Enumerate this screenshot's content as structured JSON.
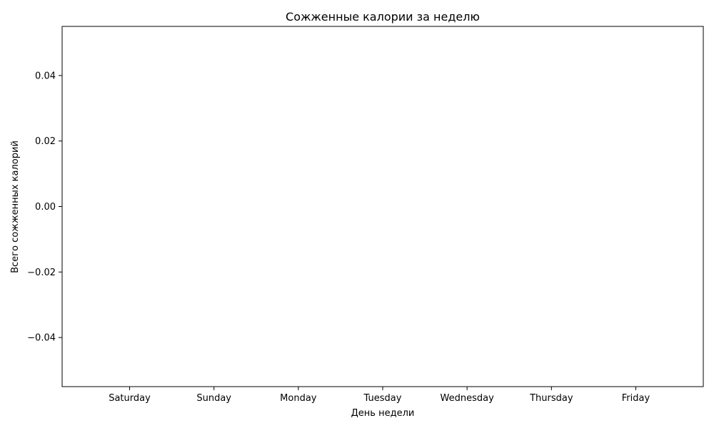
{
  "chart_data": {
    "type": "bar",
    "title": "Сожженные калории за неделю",
    "xlabel": "День недели",
    "ylabel": "Всего сожженных калорий",
    "categories": [
      "Saturday",
      "Sunday",
      "Monday",
      "Tuesday",
      "Wednesday",
      "Thursday",
      "Friday"
    ],
    "values": [
      0,
      0,
      0,
      0,
      0,
      0,
      0
    ],
    "ylim": [
      -0.055,
      0.055
    ],
    "yticks": [
      0.04,
      0.02,
      0.0,
      -0.02,
      -0.04
    ],
    "ytick_labels": [
      "0.04",
      "0.02",
      "0.00",
      "−0.02",
      "−0.04"
    ],
    "grid": false,
    "colors": {
      "bar": "#1f77b4",
      "axis": "#000000",
      "background": "#ffffff"
    }
  }
}
